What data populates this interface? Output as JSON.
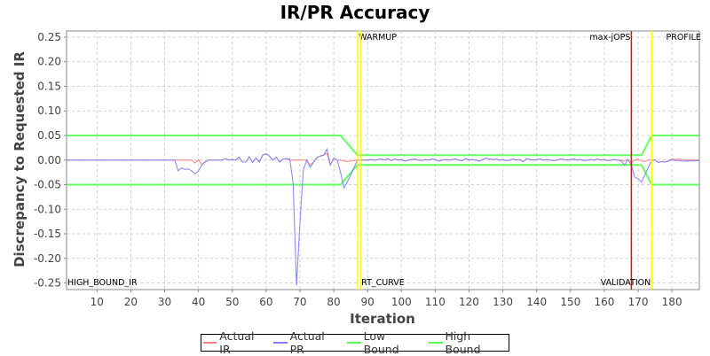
{
  "chart_data": {
    "type": "line",
    "title": "IR/PR Accuracy",
    "xlabel": "Iteration",
    "ylabel": "Discrepancy to Requested IR",
    "xlim": [
      1,
      188.1
    ],
    "ylim": [
      -0.2635,
      0.2626
    ],
    "xticks": [
      10,
      20,
      30,
      40,
      50,
      60,
      70,
      80,
      90,
      100,
      110,
      120,
      130,
      140,
      150,
      160,
      170,
      180
    ],
    "yticks": [
      "0.25",
      "0.20",
      "0.15",
      "0.10",
      "0.05",
      "0.00",
      "-0.05",
      "-0.10",
      "-0.15",
      "-0.20",
      "-0.25"
    ],
    "grid": true,
    "legend_position": "bottom",
    "steady_state": {
      "x_start": 88,
      "values": [
        0,
        0,
        0,
        0.001,
        0,
        0.001,
        0.002,
        0,
        0.003,
        -0.001,
        0.002,
        0,
        0.001,
        -0.002,
        0,
        0.001,
        0.002,
        0,
        -0.001,
        0.001,
        0,
        0.002,
        0.001,
        -0.002,
        0,
        0.001,
        0,
        0.001,
        0.002,
        0,
        -0.001,
        0.003,
        0,
        0.001,
        0,
        -0.002,
        0.001,
        0.004,
        0.002,
        0.001,
        0.002,
        0,
        0.001,
        -0.001,
        0,
        0.002,
        0,
        0.001,
        -0.003,
        0.003,
        0.001,
        0,
        0.001,
        0.002,
        0,
        0.001,
        0,
        -0.001,
        0,
        0.002,
        0.001,
        0,
        0.001,
        0.002,
        0,
        0.001,
        -0.001,
        0,
        0.001,
        0,
        0.002,
        0,
        0.001,
        -0.001,
        0,
        0.001,
        0
      ]
    },
    "series": [
      {
        "name": "Actual IR",
        "color": "#ff8080",
        "points_before": [
          [
            1,
            0
          ],
          [
            33,
            0
          ],
          [
            38,
            0
          ],
          [
            39,
            -0.006
          ],
          [
            40,
            0.001
          ],
          [
            41,
            -0.01
          ],
          [
            42,
            -0.003
          ],
          [
            43,
            0
          ],
          [
            47,
            0
          ],
          [
            48,
            0.003
          ],
          [
            49,
            0
          ],
          [
            50,
            0.001
          ],
          [
            51,
            0
          ],
          [
            52,
            0.006
          ],
          [
            53,
            -0.004
          ],
          [
            54,
            -0.004
          ],
          [
            55,
            0.007
          ],
          [
            56,
            -0.005
          ],
          [
            57,
            0.004
          ],
          [
            58,
            -0.004
          ],
          [
            59,
            0.01
          ],
          [
            60,
            0.013
          ],
          [
            61,
            0.008
          ],
          [
            62,
            0
          ],
          [
            63,
            0.006
          ],
          [
            64,
            -0.004
          ],
          [
            65,
            0.002
          ],
          [
            66,
            0.003
          ],
          [
            67,
            0
          ],
          [
            72,
            0
          ],
          [
            73,
            -0.01
          ],
          [
            74,
            -0.004
          ],
          [
            75,
            0.005
          ],
          [
            76,
            0.008
          ],
          [
            77,
            0.01
          ],
          [
            78,
            0.014
          ],
          [
            79,
            -0.01
          ],
          [
            80,
            0.004
          ],
          [
            81,
            0
          ],
          [
            82,
            0
          ],
          [
            84,
            -0.003
          ],
          [
            86,
            -0.001
          ],
          [
            87,
            0
          ]
        ],
        "points_after": [
          [
            165,
            0
          ],
          [
            166,
            -0.002
          ],
          [
            167,
            0.001
          ],
          [
            168,
            -0.005
          ],
          [
            169,
            0
          ],
          [
            170,
            0.002
          ],
          [
            171,
            -0.002
          ],
          [
            172,
            -0.003
          ],
          [
            173,
            0
          ],
          [
            175,
            0
          ],
          [
            176,
            -0.005
          ],
          [
            177,
            -0.003
          ],
          [
            178,
            -0.004
          ],
          [
            179,
            -0.001
          ],
          [
            180,
            0.002
          ],
          [
            181,
            0.001
          ],
          [
            182,
            0.002
          ],
          [
            183,
            0.001
          ],
          [
            184,
            0
          ],
          [
            188,
            0
          ]
        ]
      },
      {
        "name": "Actual PR",
        "color": "#8080ff",
        "points_before": [
          [
            1,
            0
          ],
          [
            33,
            0
          ],
          [
            34,
            -0.022
          ],
          [
            35,
            -0.016
          ],
          [
            36,
            -0.019
          ],
          [
            37,
            -0.018
          ],
          [
            38,
            -0.022
          ],
          [
            39,
            -0.028
          ],
          [
            40,
            -0.022
          ],
          [
            41,
            -0.01
          ],
          [
            42,
            -0.004
          ],
          [
            43,
            0
          ],
          [
            47,
            0
          ],
          [
            48,
            0.003
          ],
          [
            49,
            0
          ],
          [
            50,
            0.001
          ],
          [
            51,
            0
          ],
          [
            52,
            0.006
          ],
          [
            53,
            -0.004
          ],
          [
            54,
            -0.004
          ],
          [
            55,
            0.007
          ],
          [
            56,
            -0.005
          ],
          [
            57,
            0.004
          ],
          [
            58,
            -0.004
          ],
          [
            59,
            0.01
          ],
          [
            60,
            0.013
          ],
          [
            61,
            0.008
          ],
          [
            62,
            0
          ],
          [
            63,
            0.006
          ],
          [
            64,
            -0.004
          ],
          [
            65,
            0.002
          ],
          [
            66,
            0.003
          ],
          [
            67,
            0.002
          ],
          [
            68,
            -0.047
          ],
          [
            69,
            -0.255
          ],
          [
            70,
            -0.13
          ],
          [
            71,
            -0.02
          ],
          [
            72,
            0
          ],
          [
            73,
            -0.015
          ],
          [
            74,
            -0.005
          ],
          [
            75,
            0.005
          ],
          [
            76,
            0.008
          ],
          [
            77,
            0.01
          ],
          [
            78,
            0.022
          ],
          [
            79,
            -0.01
          ],
          [
            80,
            0.004
          ],
          [
            81,
            0
          ],
          [
            82,
            -0.025
          ],
          [
            83,
            -0.057
          ],
          [
            84,
            -0.045
          ],
          [
            85,
            -0.03
          ],
          [
            86,
            -0.015
          ],
          [
            87,
            0
          ]
        ],
        "points_after": [
          [
            165,
            -0.002
          ],
          [
            166,
            -0.01
          ],
          [
            167,
            0.001
          ],
          [
            168,
            -0.01
          ],
          [
            169,
            -0.035
          ],
          [
            170,
            -0.038
          ],
          [
            171,
            -0.045
          ],
          [
            172,
            -0.03
          ],
          [
            173,
            -0.015
          ],
          [
            174,
            0
          ],
          [
            175,
            0
          ],
          [
            176,
            -0.005
          ],
          [
            177,
            -0.003
          ],
          [
            178,
            -0.004
          ],
          [
            179,
            -0.002
          ],
          [
            180,
            0.001
          ],
          [
            181,
            -0.001
          ],
          [
            182,
            -0.001
          ],
          [
            183,
            -0.002
          ],
          [
            184,
            -0.002
          ],
          [
            188,
            -0.001
          ]
        ]
      },
      {
        "name": "Low Bound",
        "color": "#55ff55",
        "points": [
          [
            1,
            -0.05
          ],
          [
            82,
            -0.05
          ],
          [
            87,
            -0.01
          ],
          [
            171,
            -0.01
          ],
          [
            174,
            -0.05
          ],
          [
            188,
            -0.05
          ]
        ]
      },
      {
        "name": "High Bound",
        "color": "#55ff55",
        "points": [
          [
            1,
            0.05
          ],
          [
            82,
            0.05
          ],
          [
            87,
            0.01
          ],
          [
            171,
            0.01
          ],
          [
            174,
            0.05
          ],
          [
            188,
            0.05
          ]
        ]
      }
    ],
    "markers": [
      {
        "label": "HIGH_BOUND_IR",
        "x": 1,
        "color": "none",
        "text_pos": "bottom",
        "side": "right"
      },
      {
        "label": "WARMUP",
        "x": 87.1,
        "color": "#ffff00",
        "text_pos": "top",
        "side": "right"
      },
      {
        "label": "RT_CURVE",
        "x": 87.9,
        "color": "#ffff00",
        "text_pos": "bottom",
        "side": "right"
      },
      {
        "label": "max-jOPS",
        "x": 168,
        "color": "#ff0000",
        "text_pos": "top",
        "side": "left"
      },
      {
        "label": "VALIDATION",
        "x": 174,
        "color": "#ffff00",
        "text_pos": "bottom",
        "side": "left"
      },
      {
        "label": "PROFILE",
        "x": 178,
        "color": "none",
        "text_pos": "top",
        "side": "right"
      }
    ]
  }
}
